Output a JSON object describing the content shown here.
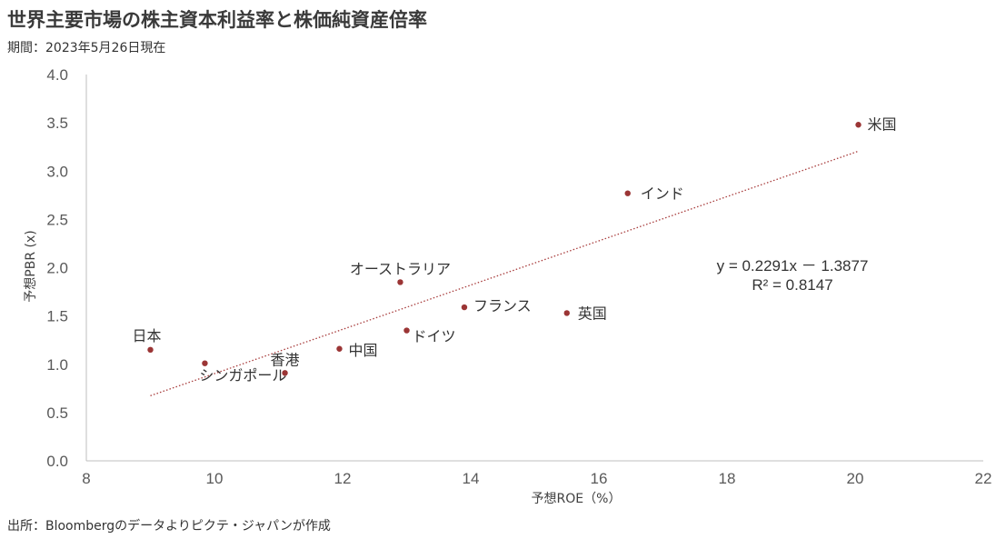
{
  "header": {
    "title": "世界主要市場の株主資本利益率と株価純資産倍率",
    "subtitle": "期間：2023年5月26日現在"
  },
  "footer": {
    "source": "出所：Bloombergのデータよりピクテ・ジャパンが作成"
  },
  "colors": {
    "point": "#9b3535",
    "trendline": "#a83c3c",
    "axis": "#bfbfbf",
    "tick_text": "#595959"
  },
  "chart_data": {
    "type": "scatter",
    "xlabel": "予想ROE（%）",
    "ylabel": "予想PBR (x)",
    "xlim": [
      8,
      22
    ],
    "ylim": [
      0.0,
      4.0
    ],
    "x_ticks": [
      8,
      10,
      12,
      14,
      16,
      18,
      20,
      22
    ],
    "y_ticks": [
      0.0,
      0.5,
      1.0,
      1.5,
      2.0,
      2.5,
      3.0,
      3.5,
      4.0
    ],
    "y_tick_labels": [
      "0.0",
      "0.5",
      "1.0",
      "1.5",
      "2.0",
      "2.5",
      "3.0",
      "3.5",
      "4.0"
    ],
    "grid": false,
    "legend": "none",
    "points": [
      {
        "label": "米国",
        "x": 20.05,
        "y": 3.48
      },
      {
        "label": "インド",
        "x": 16.45,
        "y": 2.77
      },
      {
        "label": "オーストラリア",
        "x": 12.9,
        "y": 1.85
      },
      {
        "label": "フランス",
        "x": 13.9,
        "y": 1.59
      },
      {
        "label": "英国",
        "x": 15.5,
        "y": 1.53
      },
      {
        "label": "ドイツ",
        "x": 13.0,
        "y": 1.35
      },
      {
        "label": "中国",
        "x": 11.95,
        "y": 1.16
      },
      {
        "label": "日本",
        "x": 9.0,
        "y": 1.15
      },
      {
        "label": "香港",
        "x": 11.1,
        "y": 0.91
      },
      {
        "label": "シンガポール",
        "x": 9.85,
        "y": 1.01
      }
    ],
    "trendline": {
      "type": "linear",
      "slope": 0.2291,
      "intercept": -1.3877,
      "x_range": [
        9.0,
        20.05
      ],
      "style": "dotted",
      "equation": "y = 0.2291x － 1.3877",
      "r_squared": "R² = 0.8147"
    }
  }
}
